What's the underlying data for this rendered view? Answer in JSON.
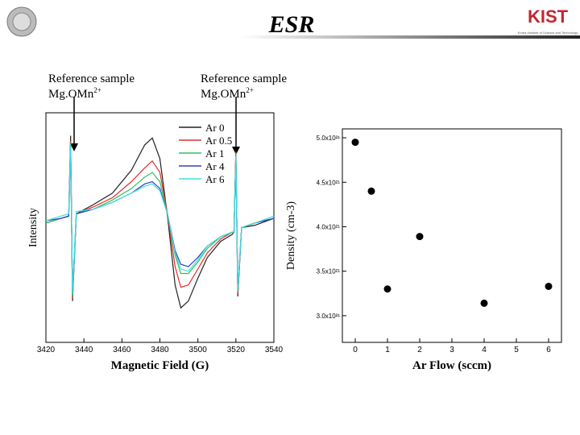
{
  "header": {
    "title": "ESR",
    "logo": "KIST",
    "logo_caption": "Korea Institute of Science and Technology"
  },
  "annotations": [
    {
      "line1": "Reference sample",
      "line2": "Mg.OMn",
      "sup": "2+"
    },
    {
      "line1": "Reference sample",
      "line2": "Mg.OMn",
      "sup": "2+"
    }
  ],
  "chart_data": [
    {
      "type": "line",
      "x_label": "Magnetic Field (G)",
      "y_label": "Intensity",
      "x": [
        3420,
        3428,
        3432,
        3433,
        3434,
        3436,
        3445,
        3455,
        3465,
        3472,
        3476,
        3480,
        3484,
        3488,
        3491,
        3495,
        3500,
        3505,
        3512,
        3518,
        3519,
        3520,
        3521,
        3523,
        3530,
        3540
      ],
      "xlim": [
        3420,
        3540
      ],
      "xticks": [
        3420,
        3440,
        3460,
        3480,
        3500,
        3520,
        3540
      ],
      "ylim": [
        0,
        100
      ],
      "legend": "upper right",
      "series": [
        {
          "name": "Ar 0",
          "color": "#222222",
          "values": [
            52,
            54,
            55,
            90,
            18,
            56,
            60,
            65,
            75,
            86,
            89,
            80,
            55,
            25,
            15,
            18,
            28,
            37,
            44,
            47,
            48,
            84,
            20,
            50,
            51,
            54
          ]
        },
        {
          "name": "Ar 0.5",
          "color": "#e03030",
          "values": [
            52,
            54,
            55,
            88,
            19,
            56,
            59,
            63,
            70,
            76,
            79,
            74,
            56,
            33,
            24,
            25,
            32,
            39,
            45,
            48,
            48,
            83,
            21,
            50,
            52,
            54
          ]
        },
        {
          "name": "Ar 1",
          "color": "#30c060",
          "values": [
            52,
            54,
            55,
            87,
            20,
            56,
            58,
            62,
            67,
            72,
            74,
            70,
            56,
            38,
            30,
            30,
            35,
            41,
            46,
            48,
            48,
            82,
            22,
            50,
            52,
            54
          ]
        },
        {
          "name": "Ar 4",
          "color": "#3040c0",
          "values": [
            53,
            54,
            55,
            86,
            21,
            56,
            58,
            61,
            65,
            69,
            70,
            67,
            56,
            40,
            34,
            33,
            37,
            42,
            46,
            48,
            48,
            81,
            23,
            50,
            52,
            54
          ]
        },
        {
          "name": "Ar 6",
          "color": "#40e0e0",
          "values": [
            53,
            55,
            56,
            86,
            21,
            57,
            58,
            61,
            65,
            68,
            69,
            66,
            56,
            39,
            32,
            31,
            36,
            42,
            46,
            48,
            48,
            81,
            23,
            50,
            52,
            55
          ]
        }
      ]
    },
    {
      "type": "scatter",
      "x_label": "Ar Flow (sccm)",
      "y_label": "Density (cm-3)",
      "x": [
        0,
        0.5,
        1,
        2,
        4,
        6
      ],
      "values": [
        4.95e+21,
        4.4e+21,
        3.3e+21,
        3.89e+21,
        3.14e+21,
        3.33e+21
      ],
      "color": "#000000",
      "xlim": [
        -0.4,
        6.4
      ],
      "xticks": [
        0,
        1,
        2,
        3,
        4,
        5,
        6
      ],
      "ylim": [
        2.7e+21,
        5.1e+21
      ],
      "yticks": [
        {
          "value": 3e+21,
          "label": "3.0x10²¹"
        },
        {
          "value": 3.5e+21,
          "label": "3.5x10²¹"
        },
        {
          "value": 4e+21,
          "label": "4.0x10²¹"
        },
        {
          "value": 4.5e+21,
          "label": "4.5x10²¹"
        },
        {
          "value": 5e+21,
          "label": "5.0x10²¹"
        }
      ]
    }
  ]
}
